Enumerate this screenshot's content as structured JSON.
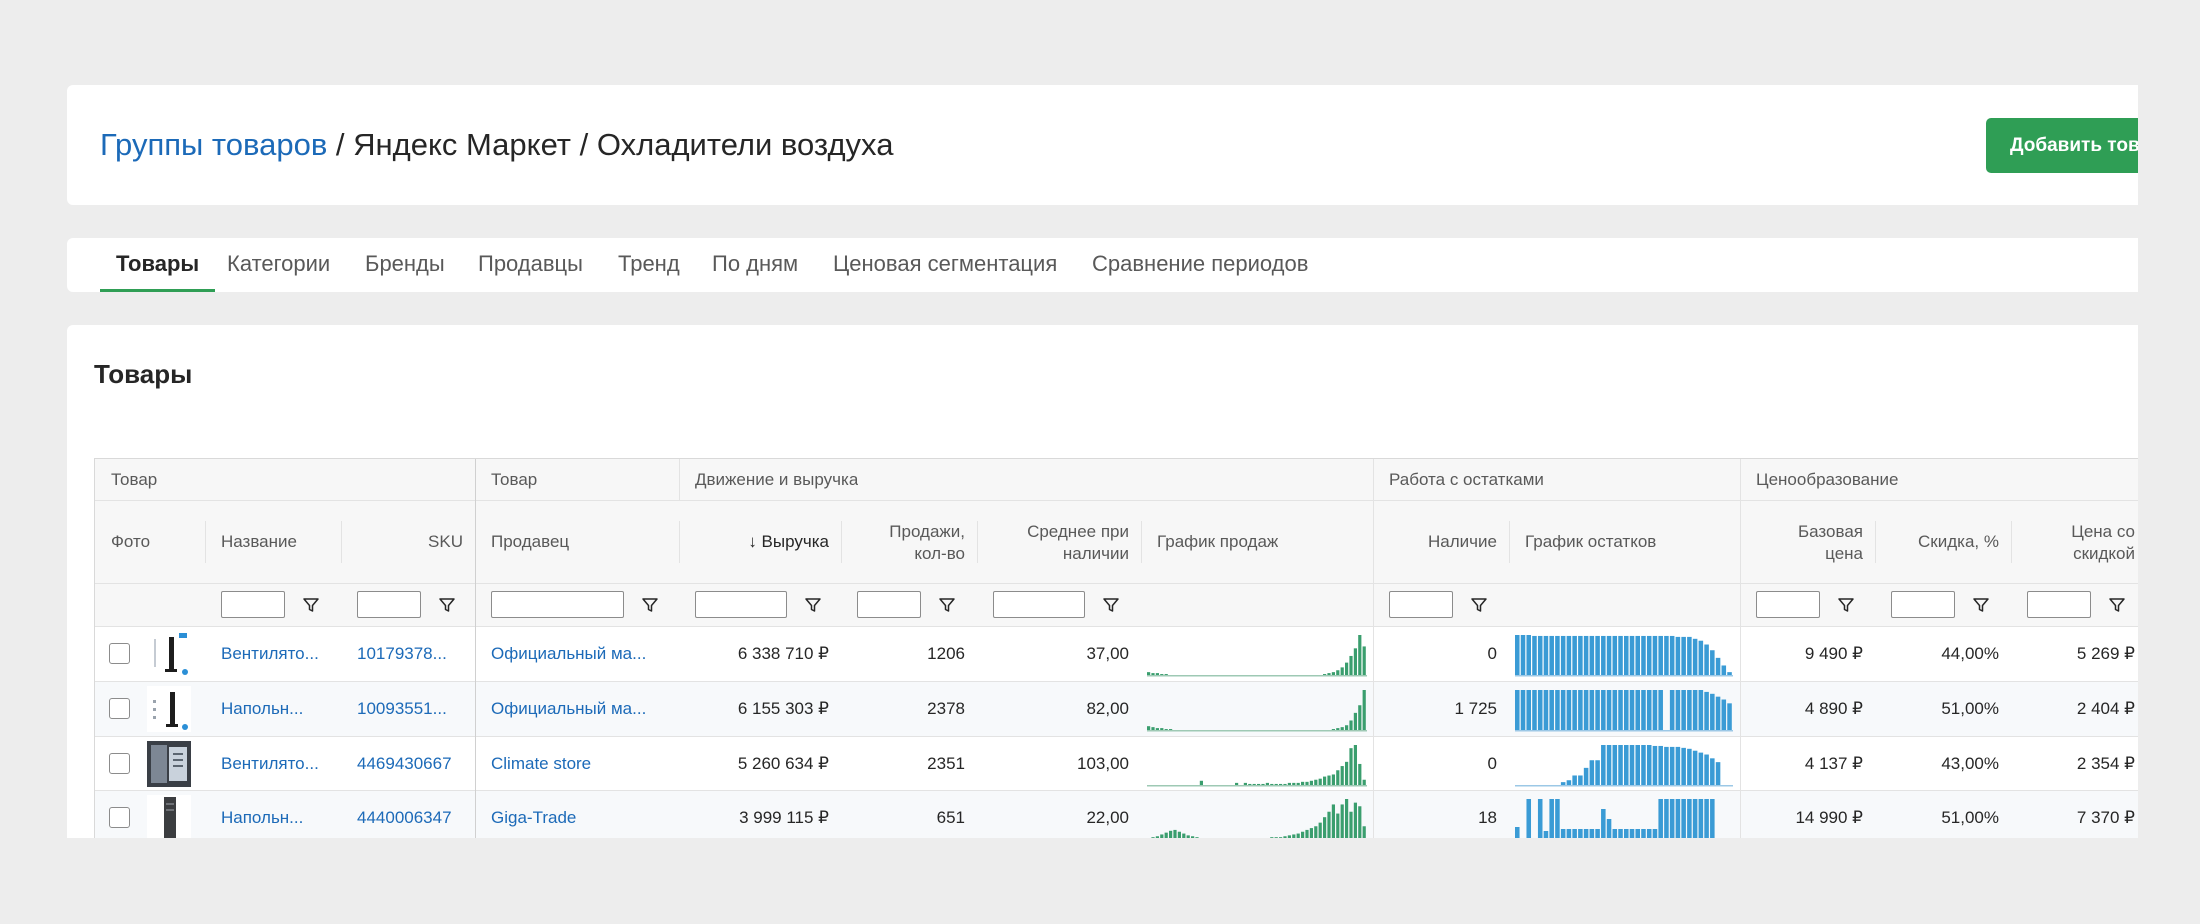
{
  "header": {
    "breadcrumb_link": "Группы товаров",
    "sep1": " / ",
    "crumb2": "Яндекс Маркет",
    "sep2": " / ",
    "crumb3": "Охладители воздуха",
    "add_button": "Добавить товар"
  },
  "tabs": [
    {
      "label": "Товары",
      "active": true
    },
    {
      "label": "Категории"
    },
    {
      "label": "Бренды"
    },
    {
      "label": "Продавцы"
    },
    {
      "label": "Тренд"
    },
    {
      "label": "По дням"
    },
    {
      "label": "Ценовая сегментация"
    },
    {
      "label": "Сравнение периодов"
    }
  ],
  "section_title": "Товары",
  "groups": {
    "product": "Товар",
    "product2": "Товар",
    "movement": "Движение и выручка",
    "stock": "Работа с остатками",
    "pricing": "Ценообразование"
  },
  "columns": {
    "photo": "Фото",
    "name": "Название",
    "sku": "SKU",
    "seller": "Продавец",
    "revenue": "↓ Выручка",
    "sales_1": "Продажи,",
    "sales_2": "кол-во",
    "avg_1": "Среднее при",
    "avg_2": "наличии",
    "sales_chart": "График продаж",
    "stock": "Наличие",
    "stock_chart": "График остатков",
    "base_1": "Базовая",
    "base_2": "цена",
    "discount": "Скидка, %",
    "price_1": "Цена со",
    "price_2": "скидкой"
  },
  "colors": {
    "link": "#1c6ab8",
    "accent_green": "#2f9e55",
    "sales_bar": "#3a9e6e",
    "stock_bar": "#3a9bd5"
  },
  "rows": [
    {
      "name": "Вентилято...",
      "sku": "10179378...",
      "seller": "Официальный ма...",
      "revenue": "6 338 710 ₽",
      "sales": "1206",
      "avg": "37,00",
      "stock": "0",
      "base_price": "9 490 ₽",
      "discount": "44,00%",
      "price": "5 269 ₽",
      "sales_series": [
        3,
        2,
        2,
        1,
        1,
        0,
        0,
        0,
        0,
        0,
        0,
        0,
        0,
        0,
        0,
        0,
        0,
        0,
        0,
        0,
        0,
        0,
        0,
        0,
        0,
        0,
        0,
        0,
        0,
        0,
        0,
        0,
        0,
        0,
        0,
        0,
        0,
        0,
        0,
        0,
        1,
        2,
        3,
        5,
        8,
        13,
        20,
        28,
        42,
        30
      ],
      "stock_series": [
        42,
        42,
        42,
        41,
        41,
        41,
        41,
        41,
        41,
        41,
        41,
        41,
        41,
        41,
        41,
        41,
        41,
        41,
        41,
        41,
        41,
        41,
        41,
        41,
        41,
        41,
        41,
        41,
        40,
        40,
        40,
        38,
        36,
        32,
        26,
        18,
        10,
        3
      ]
    },
    {
      "name": "Напольн...",
      "sku": "10093551...",
      "seller": "Официальный ма...",
      "revenue": "6 155 303 ₽",
      "sales": "2378",
      "avg": "82,00",
      "stock": "1 725",
      "base_price": "4 890 ₽",
      "discount": "51,00%",
      "price": "2 404 ₽",
      "sales_series": [
        4,
        3,
        2,
        2,
        1,
        1,
        0,
        0,
        0,
        0,
        0,
        0,
        0,
        0,
        0,
        0,
        0,
        0,
        0,
        0,
        0,
        0,
        0,
        0,
        0,
        0,
        0,
        0,
        0,
        0,
        0,
        0,
        0,
        0,
        0,
        0,
        0,
        0,
        0,
        0,
        0,
        0,
        1,
        2,
        3,
        5,
        10,
        18,
        26,
        42
      ],
      "stock_series": [
        42,
        42,
        42,
        42,
        42,
        42,
        42,
        42,
        42,
        42,
        42,
        42,
        42,
        42,
        42,
        42,
        42,
        42,
        42,
        42,
        42,
        42,
        42,
        42,
        42,
        42,
        0,
        42,
        42,
        42,
        42,
        42,
        42,
        40,
        38,
        35,
        32,
        28
      ]
    },
    {
      "name": "Вентилято...",
      "sku": "4469430667",
      "seller": "Climate store",
      "revenue": "5 260 634 ₽",
      "sales": "2351",
      "avg": "103,00",
      "stock": "0",
      "base_price": "4 137 ₽",
      "discount": "43,00%",
      "price": "2 354 ₽",
      "sales_series": [
        0,
        0,
        0,
        0,
        0,
        0,
        0,
        0,
        0,
        0,
        0,
        0,
        4,
        0,
        0,
        0,
        0,
        0,
        0,
        0,
        2,
        0,
        2,
        1,
        1,
        1,
        1,
        2,
        1,
        1,
        1,
        1,
        2,
        2,
        2,
        3,
        3,
        4,
        5,
        6,
        8,
        9,
        10,
        14,
        18,
        22,
        35,
        38,
        20,
        5
      ],
      "stock_series": [
        0,
        0,
        0,
        0,
        0,
        0,
        0,
        0,
        3,
        5,
        10,
        10,
        18,
        26,
        26,
        42,
        42,
        42,
        42,
        42,
        42,
        42,
        42,
        42,
        41,
        41,
        40,
        40,
        40,
        39,
        38,
        36,
        34,
        32,
        28,
        24,
        0,
        0
      ]
    },
    {
      "name": "Напольн...",
      "sku": "4440006347",
      "seller": "Giga-Trade",
      "revenue": "3 999 115 ₽",
      "sales": "651",
      "avg": "22,00",
      "stock": "18",
      "base_price": "14 990 ₽",
      "discount": "51,00%",
      "price": "7 370 ₽",
      "sales_series": [
        1,
        2,
        3,
        5,
        7,
        9,
        10,
        8,
        6,
        4,
        3,
        2,
        1,
        1,
        0,
        0,
        0,
        1,
        1,
        1,
        1,
        1,
        1,
        1,
        1,
        1,
        1,
        1,
        2,
        2,
        2,
        3,
        4,
        5,
        6,
        8,
        10,
        12,
        14,
        18,
        24,
        30,
        38,
        28,
        38,
        44,
        30,
        40,
        36,
        14
      ],
      "stock_series": [
        12,
        0,
        40,
        0,
        40,
        8,
        40,
        40,
        10,
        10,
        10,
        10,
        10,
        10,
        10,
        30,
        20,
        10,
        10,
        10,
        10,
        10,
        10,
        10,
        10,
        40,
        40,
        40,
        40,
        40,
        40,
        40,
        40,
        40,
        40,
        0,
        0,
        0
      ]
    }
  ]
}
